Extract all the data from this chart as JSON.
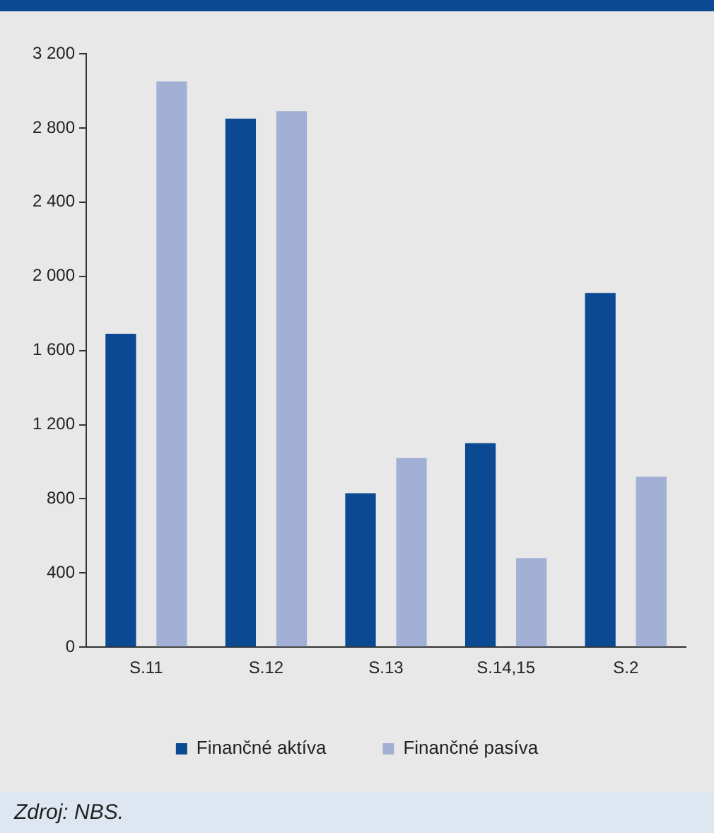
{
  "chart_data": {
    "type": "bar",
    "categories": [
      "S.11",
      "S.12",
      "S.13",
      "S.14,15",
      "S.2"
    ],
    "series": [
      {
        "name": "Finančné aktíva",
        "color": "#0b4a93",
        "values": [
          1690,
          2850,
          830,
          1100,
          1910
        ]
      },
      {
        "name": "Finančné pasíva",
        "color": "#a2b0d6",
        "values": [
          3050,
          2890,
          1020,
          480,
          920
        ]
      }
    ],
    "ylim": [
      0,
      3200
    ],
    "yticks": [
      0,
      400,
      800,
      {
        "value": 1200,
        "label": "1 200"
      },
      {
        "value": 1600,
        "label": "1 600"
      },
      {
        "value": 2000,
        "label": "2 000"
      },
      {
        "value": 2400,
        "label": "2 400"
      },
      {
        "value": 2800,
        "label": "2 800"
      },
      {
        "value": 3200,
        "label": "3 200"
      }
    ],
    "grid": false,
    "legend": "bottom",
    "annotations": [
      "Zdroj: NBS."
    ]
  }
}
